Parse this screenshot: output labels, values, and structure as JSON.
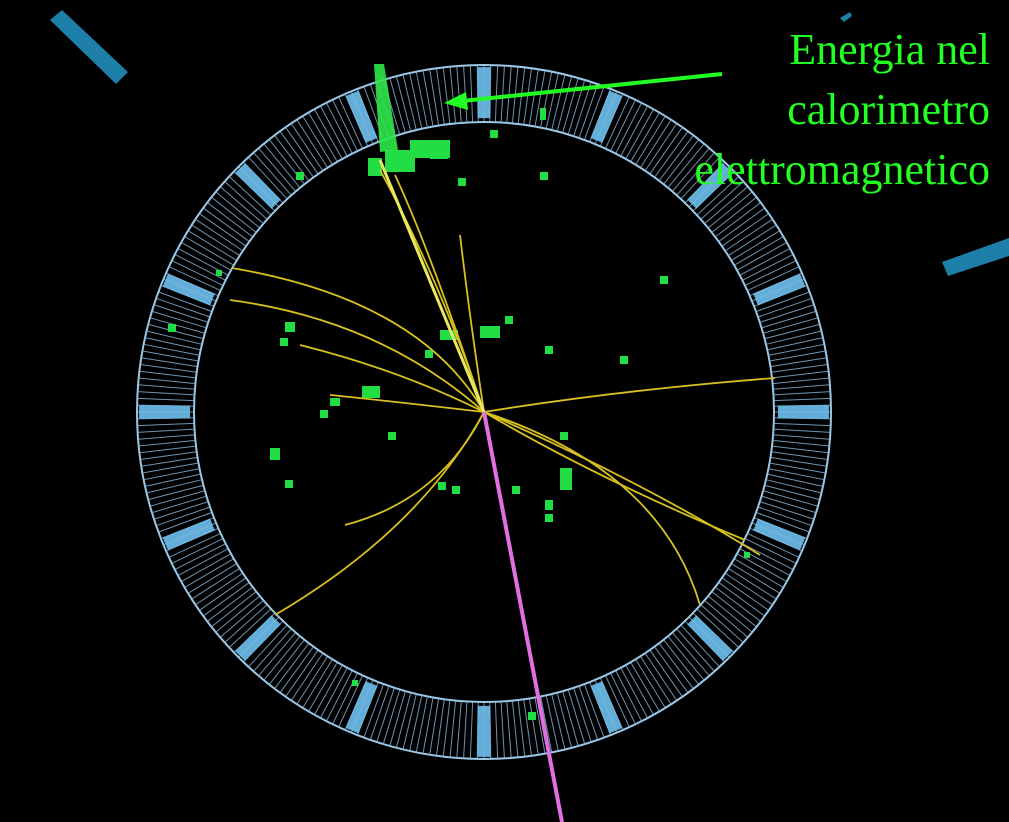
{
  "annotation": {
    "lines": [
      "Energia nel",
      "calorimetro",
      "elettromagnetico"
    ]
  }
}
